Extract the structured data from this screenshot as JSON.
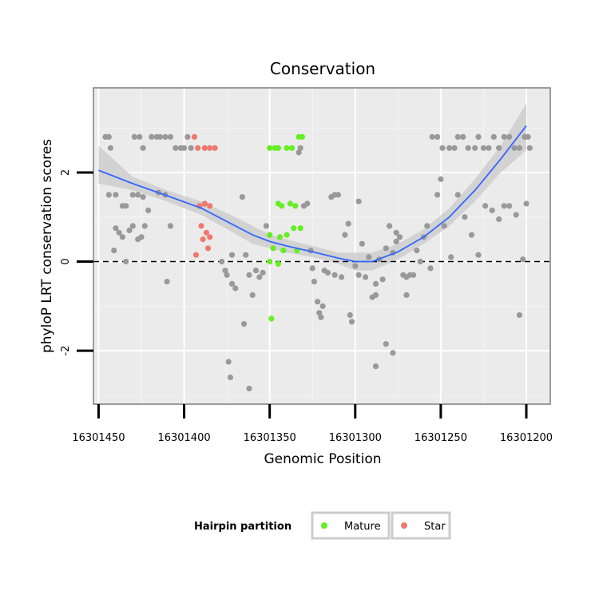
{
  "chart_data": {
    "type": "scatter",
    "title": "Conservation",
    "xlabel": "Genomic Position",
    "ylabel": "phyloP LRT conservation scores",
    "x_reversed": true,
    "xlim": [
      16301453,
      16301186
    ],
    "ylim": [
      -3.2,
      3.9
    ],
    "x_ticks": [
      16301450,
      16301400,
      16301350,
      16301300,
      16301250,
      16301200
    ],
    "y_ticks": [
      -2,
      0,
      2
    ],
    "x_tick_labels": [
      "16301450",
      "16301400",
      "16301350",
      "16301300",
      "16301250",
      "16301200"
    ],
    "y_tick_labels": [
      "-2",
      "0",
      "2"
    ],
    "reference_line": {
      "y": 0,
      "style": "dashed"
    },
    "legend": {
      "title": "Hairpin partition",
      "position": "bottom",
      "entries": [
        {
          "label": "Mature",
          "color": "#66ee22"
        },
        {
          "label": "Star",
          "color": "#f07870"
        }
      ]
    },
    "colors": {
      "background": "#ebebeb",
      "points_other": "#999999",
      "smooth_line": "#3366ff",
      "ribbon": "#cccccc"
    },
    "series": [
      {
        "name": "Other",
        "color": "#999999",
        "points": [
          [
            16301446,
            2.8
          ],
          [
            16301444,
            2.8
          ],
          [
            16301443,
            2.55
          ],
          [
            16301429,
            2.8
          ],
          [
            16301426,
            2.8
          ],
          [
            16301424,
            2.55
          ],
          [
            16301419,
            2.8
          ],
          [
            16301416,
            2.8
          ],
          [
            16301414,
            2.8
          ],
          [
            16301411,
            2.8
          ],
          [
            16301408,
            2.8
          ],
          [
            16301405,
            2.55
          ],
          [
            16301402,
            2.55
          ],
          [
            16301400,
            2.55
          ],
          [
            16301398,
            2.8
          ],
          [
            16301396,
            2.55
          ],
          [
            16301444,
            1.5
          ],
          [
            16301440,
            1.5
          ],
          [
            16301436,
            1.25
          ],
          [
            16301434,
            1.25
          ],
          [
            16301430,
            1.5
          ],
          [
            16301427,
            1.5
          ],
          [
            16301424,
            1.45
          ],
          [
            16301421,
            1.15
          ],
          [
            16301415,
            1.55
          ],
          [
            16301411,
            1.5
          ],
          [
            16301408,
            0.8
          ],
          [
            16301440,
            0.75
          ],
          [
            16301438,
            0.65
          ],
          [
            16301436,
            0.55
          ],
          [
            16301432,
            0.7
          ],
          [
            16301430,
            0.8
          ],
          [
            16301427,
            0.5
          ],
          [
            16301425,
            0.55
          ],
          [
            16301423,
            0.8
          ],
          [
            16301441,
            0.25
          ],
          [
            16301434,
            0.0
          ],
          [
            16301410,
            -0.45
          ],
          [
            16301378,
            0.0
          ],
          [
            16301376,
            -0.2
          ],
          [
            16301372,
            -0.5
          ],
          [
            16301375,
            -0.3
          ],
          [
            16301372,
            0.15
          ],
          [
            16301370,
            -0.6
          ],
          [
            16301366,
            1.45
          ],
          [
            16301364,
            0.15
          ],
          [
            16301362,
            -0.3
          ],
          [
            16301360,
            -0.75
          ],
          [
            16301358,
            -0.2
          ],
          [
            16301356,
            -0.35
          ],
          [
            16301354,
            -0.25
          ],
          [
            16301352,
            0.8
          ],
          [
            16301365,
            -1.4
          ],
          [
            16301374,
            -2.25
          ],
          [
            16301373,
            -2.6
          ],
          [
            16301362,
            -2.85
          ],
          [
            16301333,
            2.45
          ],
          [
            16301332,
            2.55
          ],
          [
            16301330,
            1.25
          ],
          [
            16301328,
            1.3
          ],
          [
            16301326,
            0.25
          ],
          [
            16301325,
            -0.15
          ],
          [
            16301324,
            -0.45
          ],
          [
            16301322,
            -0.9
          ],
          [
            16301321,
            -1.15
          ],
          [
            16301320,
            -1.25
          ],
          [
            16301319,
            -1.0
          ],
          [
            16301318,
            -0.2
          ],
          [
            16301316,
            -0.25
          ],
          [
            16301314,
            1.45
          ],
          [
            16301312,
            1.5
          ],
          [
            16301310,
            1.5
          ],
          [
            16301312,
            -0.3
          ],
          [
            16301308,
            -0.35
          ],
          [
            16301306,
            0.6
          ],
          [
            16301304,
            0.85
          ],
          [
            16301303,
            -1.2
          ],
          [
            16301302,
            -1.35
          ],
          [
            16301300,
            -0.1
          ],
          [
            16301298,
            -0.3
          ],
          [
            16301296,
            0.4
          ],
          [
            16301294,
            -0.35
          ],
          [
            16301292,
            0.1
          ],
          [
            16301290,
            -0.8
          ],
          [
            16301288,
            -0.75
          ],
          [
            16301286,
            0.05
          ],
          [
            16301284,
            -0.4
          ],
          [
            16301282,
            0.3
          ],
          [
            16301280,
            0.8
          ],
          [
            16301278,
            0.2
          ],
          [
            16301276,
            0.65
          ],
          [
            16301274,
            0.55
          ],
          [
            16301272,
            -0.3
          ],
          [
            16301270,
            -0.35
          ],
          [
            16301268,
            -0.3
          ],
          [
            16301266,
            -0.3
          ],
          [
            16301264,
            0.25
          ],
          [
            16301262,
            0.0
          ],
          [
            16301260,
            0.55
          ],
          [
            16301258,
            0.8
          ],
          [
            16301256,
            -0.15
          ],
          [
            16301252,
            1.5
          ],
          [
            16301248,
            0.8
          ],
          [
            16301244,
            0.1
          ],
          [
            16301240,
            1.5
          ],
          [
            16301236,
            1.0
          ],
          [
            16301232,
            0.6
          ],
          [
            16301228,
            0.15
          ],
          [
            16301224,
            1.25
          ],
          [
            16301220,
            1.15
          ],
          [
            16301216,
            0.95
          ],
          [
            16301213,
            1.25
          ],
          [
            16301210,
            1.25
          ],
          [
            16301206,
            1.05
          ],
          [
            16301204,
            -1.2
          ],
          [
            16301202,
            0.05
          ],
          [
            16301200,
            1.3
          ],
          [
            16301282,
            -1.85
          ],
          [
            16301278,
            -2.05
          ],
          [
            16301288,
            -2.35
          ],
          [
            16301288,
            -0.5
          ],
          [
            16301270,
            -0.75
          ],
          [
            16301250,
            1.85
          ],
          [
            16301276,
            0.45
          ],
          [
            16301298,
            1.35
          ],
          [
            16301255,
            2.8
          ],
          [
            16301252,
            2.8
          ],
          [
            16301249,
            2.55
          ],
          [
            16301245,
            2.55
          ],
          [
            16301242,
            2.55
          ],
          [
            16301240,
            2.8
          ],
          [
            16301237,
            2.8
          ],
          [
            16301234,
            2.55
          ],
          [
            16301230,
            2.55
          ],
          [
            16301228,
            2.8
          ],
          [
            16301225,
            2.55
          ],
          [
            16301222,
            2.55
          ],
          [
            16301219,
            2.8
          ],
          [
            16301216,
            2.55
          ],
          [
            16301213,
            2.8
          ],
          [
            16301210,
            2.8
          ],
          [
            16301207,
            2.55
          ],
          [
            16301204,
            2.55
          ],
          [
            16301201,
            2.8
          ],
          [
            16301199,
            2.8
          ],
          [
            16301198,
            2.55
          ]
        ]
      },
      {
        "name": "Mature",
        "color": "#66ee22",
        "points": [
          [
            16301350,
            2.55
          ],
          [
            16301347,
            2.55
          ],
          [
            16301345,
            2.55
          ],
          [
            16301340,
            2.55
          ],
          [
            16301337,
            2.55
          ],
          [
            16301333,
            2.8
          ],
          [
            16301331,
            2.8
          ],
          [
            16301345,
            1.3
          ],
          [
            16301343,
            1.25
          ],
          [
            16301338,
            1.3
          ],
          [
            16301335,
            1.25
          ],
          [
            16301350,
            0.6
          ],
          [
            16301344,
            0.55
          ],
          [
            16301340,
            0.6
          ],
          [
            16301336,
            0.75
          ],
          [
            16301332,
            0.75
          ],
          [
            16301348,
            0.3
          ],
          [
            16301342,
            0.25
          ],
          [
            16301334,
            0.25
          ],
          [
            16301350,
            0.0
          ],
          [
            16301345,
            -0.05
          ],
          [
            16301349,
            -1.28
          ]
        ]
      },
      {
        "name": "Star",
        "color": "#f07870",
        "points": [
          [
            16301394,
            2.8
          ],
          [
            16301392,
            2.55
          ],
          [
            16301388,
            2.55
          ],
          [
            16301385,
            2.55
          ],
          [
            16301382,
            2.55
          ],
          [
            16301391,
            1.25
          ],
          [
            16301388,
            1.3
          ],
          [
            16301385,
            1.25
          ],
          [
            16301390,
            0.8
          ],
          [
            16301387,
            0.65
          ],
          [
            16301385,
            0.55
          ],
          [
            16301389,
            0.5
          ],
          [
            16301386,
            0.3
          ],
          [
            16301393,
            0.15
          ]
        ]
      }
    ],
    "smooth_fit": {
      "method": "loess",
      "x": [
        16301450,
        16301430,
        16301410,
        16301390,
        16301370,
        16301360,
        16301350,
        16301340,
        16301325,
        16301310,
        16301300,
        16301290,
        16301275,
        16301260,
        16301245,
        16301230,
        16301215,
        16301200
      ],
      "y": [
        2.05,
        1.75,
        1.48,
        1.2,
        0.8,
        0.6,
        0.45,
        0.35,
        0.22,
        0.08,
        0.0,
        0.0,
        0.22,
        0.55,
        1.0,
        1.6,
        2.3,
        3.05
      ],
      "ci_lower": [
        1.75,
        1.6,
        1.35,
        1.05,
        0.62,
        0.4,
        0.3,
        0.2,
        0.1,
        -0.05,
        -0.2,
        -0.2,
        0.05,
        0.4,
        0.8,
        1.35,
        2.0,
        2.5
      ],
      "ci_upper": [
        2.6,
        1.9,
        1.6,
        1.35,
        1.0,
        0.8,
        0.6,
        0.5,
        0.35,
        0.2,
        0.2,
        0.2,
        0.4,
        0.72,
        1.2,
        1.85,
        2.6,
        3.55
      ]
    }
  }
}
